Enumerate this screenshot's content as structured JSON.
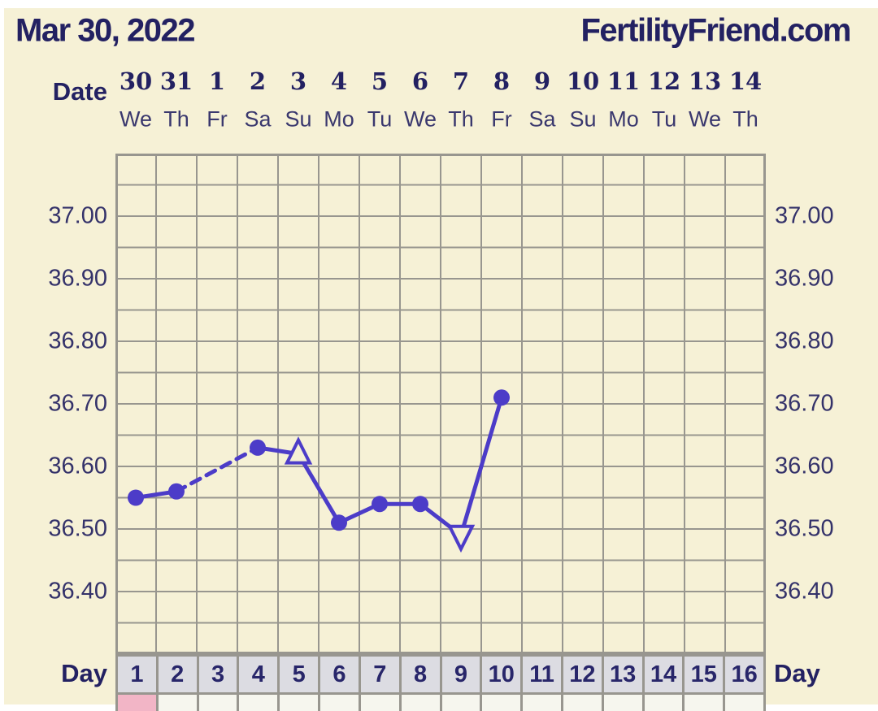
{
  "header": {
    "date_title": "Mar 30, 2022",
    "brand": "FertilityFriend.com"
  },
  "labels": {
    "date_axis": "Date",
    "day_axis_left": "Day",
    "day_axis_right": "Day"
  },
  "colors": {
    "page_margin": "#ffffff",
    "panel_background": "#f6f1d6",
    "text_navy_dark": "#232162",
    "text_navy_soft": "#3a386e",
    "grid_gray": "#98968f",
    "line_purple": "#4c3cc8",
    "day_row_background": "#dcdce2",
    "menses_pink": "#f2b5c6",
    "bottom_row_background": "#f6f6ee"
  },
  "chart_data": {
    "type": "line",
    "title": "Basal body temperature cycle chart",
    "x_dates": [
      "30",
      "31",
      "1",
      "2",
      "3",
      "4",
      "5",
      "6",
      "7",
      "8",
      "9",
      "10",
      "11",
      "12",
      "13",
      "14"
    ],
    "x_weekdays": [
      "We",
      "Th",
      "Fr",
      "Sa",
      "Su",
      "Mo",
      "Tu",
      "We",
      "Th",
      "Fr",
      "Sa",
      "Su",
      "Mo",
      "Tu",
      "We",
      "Th"
    ],
    "cycle_days": [
      "1",
      "2",
      "3",
      "4",
      "5",
      "6",
      "7",
      "8",
      "9",
      "10",
      "11",
      "12",
      "13",
      "14",
      "15",
      "16"
    ],
    "y_tick_labels": [
      "37.00",
      "36.90",
      "36.80",
      "36.70",
      "36.60",
      "36.50",
      "36.40"
    ],
    "ylim": [
      36.3,
      37.1
    ],
    "grid_step": 0.05,
    "grid": true,
    "legend_position": "none",
    "points": [
      {
        "cycle_day": 1,
        "date": "30",
        "temp": 36.55,
        "marker": "filled-circle"
      },
      {
        "cycle_day": 2,
        "date": "31",
        "temp": 36.56,
        "marker": "filled-circle"
      },
      {
        "cycle_day": 4,
        "date": "2",
        "temp": 36.63,
        "marker": "filled-circle"
      },
      {
        "cycle_day": 5,
        "date": "3",
        "temp": 36.62,
        "marker": "open-triangle-up"
      },
      {
        "cycle_day": 6,
        "date": "4",
        "temp": 36.51,
        "marker": "filled-circle"
      },
      {
        "cycle_day": 7,
        "date": "5",
        "temp": 36.54,
        "marker": "filled-circle"
      },
      {
        "cycle_day": 8,
        "date": "6",
        "temp": 36.54,
        "marker": "filled-circle"
      },
      {
        "cycle_day": 9,
        "date": "7",
        "temp": 36.49,
        "marker": "open-triangle-down"
      },
      {
        "cycle_day": 10,
        "date": "8",
        "temp": 36.71,
        "marker": "filled-circle"
      }
    ],
    "missing_days": [
      3
    ],
    "dashed_segment_over_missing_days": true,
    "menstruation_days": [
      1
    ]
  }
}
